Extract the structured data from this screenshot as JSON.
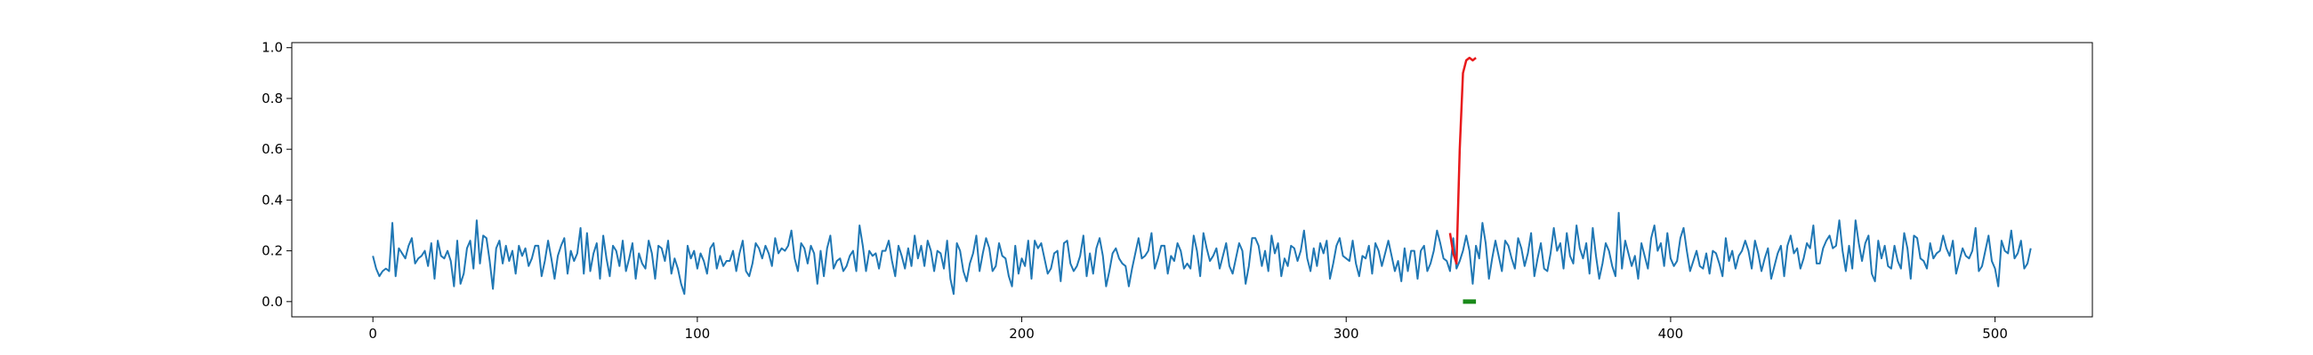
{
  "chart_data": {
    "type": "line",
    "title": "",
    "xlabel": "",
    "ylabel": "",
    "xlim": [
      -25,
      530
    ],
    "ylim": [
      -0.06,
      1.02
    ],
    "grid": false,
    "x_ticks": [
      0,
      100,
      200,
      300,
      400,
      500
    ],
    "y_ticks": [
      0.0,
      0.2,
      0.4,
      0.6,
      0.8,
      1.0
    ],
    "x_tick_labels": [
      "0",
      "100",
      "200",
      "300",
      "400",
      "500"
    ],
    "y_tick_labels": [
      "0.0",
      "0.2",
      "0.4",
      "0.6",
      "0.8",
      "1.0"
    ],
    "colors": {
      "signal": "#1f77b4",
      "anomaly": "#e8191b",
      "marker": "#1a8a1a"
    },
    "series": [
      {
        "values": [
          0.18,
          0.13,
          0.1,
          0.12,
          0.13,
          0.12,
          0.31,
          0.1,
          0.21,
          0.19,
          0.17,
          0.22,
          0.25,
          0.15,
          0.17,
          0.18,
          0.2,
          0.14,
          0.23,
          0.09,
          0.24,
          0.18,
          0.17,
          0.2,
          0.16,
          0.06,
          0.24,
          0.07,
          0.11,
          0.21,
          0.24,
          0.13,
          0.32,
          0.15,
          0.26,
          0.25,
          0.16,
          0.05,
          0.21,
          0.24,
          0.15,
          0.22,
          0.16,
          0.2,
          0.11,
          0.22,
          0.18,
          0.21,
          0.14,
          0.17,
          0.22,
          0.22,
          0.1,
          0.16,
          0.24,
          0.17,
          0.09,
          0.18,
          0.22,
          0.25,
          0.11,
          0.2,
          0.16,
          0.19,
          0.29,
          0.11,
          0.27,
          0.12,
          0.19,
          0.23,
          0.09,
          0.26,
          0.17,
          0.1,
          0.22,
          0.2,
          0.14,
          0.24,
          0.12,
          0.17,
          0.23,
          0.09,
          0.19,
          0.15,
          0.13,
          0.24,
          0.19,
          0.09,
          0.22,
          0.21,
          0.16,
          0.24,
          0.11,
          0.17,
          0.13,
          0.07,
          0.03,
          0.22,
          0.17,
          0.2,
          0.13,
          0.19,
          0.16,
          0.11,
          0.21,
          0.23,
          0.13,
          0.18,
          0.14,
          0.16,
          0.16,
          0.2,
          0.12,
          0.19,
          0.24,
          0.12,
          0.1,
          0.15,
          0.23,
          0.21,
          0.17,
          0.22,
          0.19,
          0.14,
          0.25,
          0.19,
          0.21,
          0.2,
          0.22,
          0.28,
          0.17,
          0.12,
          0.23,
          0.21,
          0.15,
          0.22,
          0.19,
          0.07,
          0.2,
          0.1,
          0.21,
          0.26,
          0.13,
          0.16,
          0.17,
          0.12,
          0.14,
          0.18,
          0.2,
          0.12,
          0.3,
          0.22,
          0.12,
          0.2,
          0.18,
          0.19,
          0.13,
          0.2,
          0.2,
          0.24,
          0.16,
          0.1,
          0.22,
          0.18,
          0.13,
          0.21,
          0.14,
          0.26,
          0.17,
          0.22,
          0.14,
          0.24,
          0.2,
          0.12,
          0.2,
          0.19,
          0.13,
          0.24,
          0.09,
          0.03,
          0.23,
          0.2,
          0.12,
          0.08,
          0.15,
          0.19,
          0.26,
          0.12,
          0.19,
          0.25,
          0.21,
          0.12,
          0.14,
          0.23,
          0.18,
          0.17,
          0.1,
          0.06,
          0.22,
          0.11,
          0.17,
          0.14,
          0.24,
          0.09,
          0.24,
          0.21,
          0.23,
          0.17,
          0.11,
          0.13,
          0.19,
          0.2,
          0.08,
          0.23,
          0.24,
          0.15,
          0.12,
          0.14,
          0.18,
          0.26,
          0.1,
          0.19,
          0.11,
          0.21,
          0.25,
          0.18,
          0.06,
          0.12,
          0.19,
          0.21,
          0.17,
          0.15,
          0.14,
          0.06,
          0.13,
          0.19,
          0.25,
          0.17,
          0.18,
          0.2,
          0.27,
          0.13,
          0.17,
          0.22,
          0.22,
          0.11,
          0.18,
          0.16,
          0.23,
          0.2,
          0.13,
          0.15,
          0.13,
          0.26,
          0.2,
          0.1,
          0.27,
          0.21,
          0.16,
          0.18,
          0.21,
          0.13,
          0.18,
          0.23,
          0.14,
          0.11,
          0.17,
          0.23,
          0.2,
          0.07,
          0.14,
          0.25,
          0.25,
          0.22,
          0.14,
          0.2,
          0.12,
          0.26,
          0.19,
          0.23,
          0.1,
          0.17,
          0.14,
          0.22,
          0.21,
          0.16,
          0.2,
          0.28,
          0.17,
          0.12,
          0.21,
          0.14,
          0.23,
          0.19,
          0.24,
          0.09,
          0.15,
          0.22,
          0.25,
          0.18,
          0.17,
          0.16,
          0.24,
          0.15,
          0.1,
          0.18,
          0.17,
          0.22,
          0.11,
          0.23,
          0.2,
          0.14,
          0.19,
          0.24,
          0.18,
          0.12,
          0.16,
          0.08,
          0.21,
          0.12,
          0.2,
          0.2,
          0.09,
          0.2,
          0.22,
          0.12,
          0.15,
          0.2,
          0.28,
          0.23,
          0.17,
          0.16,
          0.12,
          0.25,
          0.13,
          0.16,
          0.2,
          0.26,
          0.2,
          0.07,
          0.22,
          0.17,
          0.31,
          0.23,
          0.09,
          0.17,
          0.24,
          0.18,
          0.12,
          0.24,
          0.22,
          0.17,
          0.13,
          0.25,
          0.21,
          0.14,
          0.19,
          0.27,
          0.1,
          0.17,
          0.23,
          0.13,
          0.12,
          0.19,
          0.29,
          0.2,
          0.23,
          0.13,
          0.27,
          0.18,
          0.15,
          0.3,
          0.21,
          0.17,
          0.23,
          0.11,
          0.29,
          0.18,
          0.09,
          0.15,
          0.23,
          0.2,
          0.14,
          0.1,
          0.35,
          0.13,
          0.24,
          0.19,
          0.14,
          0.18,
          0.09,
          0.23,
          0.18,
          0.13,
          0.25,
          0.3,
          0.2,
          0.23,
          0.14,
          0.27,
          0.17,
          0.14,
          0.16,
          0.25,
          0.29,
          0.2,
          0.12,
          0.16,
          0.2,
          0.14,
          0.13,
          0.19,
          0.11,
          0.2,
          0.19,
          0.15,
          0.1,
          0.25,
          0.16,
          0.2,
          0.13,
          0.18,
          0.2,
          0.24,
          0.2,
          0.13,
          0.24,
          0.19,
          0.12,
          0.17,
          0.21,
          0.09,
          0.14,
          0.19,
          0.22,
          0.1,
          0.22,
          0.26,
          0.19,
          0.21,
          0.13,
          0.17,
          0.23,
          0.21,
          0.3,
          0.15,
          0.15,
          0.21,
          0.24,
          0.26,
          0.21,
          0.22,
          0.32,
          0.2,
          0.12,
          0.22,
          0.13,
          0.32,
          0.23,
          0.16,
          0.23,
          0.26,
          0.11,
          0.08,
          0.24,
          0.17,
          0.22,
          0.14,
          0.13,
          0.22,
          0.16,
          0.13,
          0.27,
          0.21,
          0.09,
          0.26,
          0.25,
          0.17,
          0.16,
          0.13,
          0.23,
          0.17,
          0.19,
          0.2,
          0.26,
          0.21,
          0.18,
          0.24,
          0.11,
          0.16,
          0.21,
          0.18,
          0.17,
          0.2,
          0.29,
          0.12,
          0.14,
          0.2,
          0.26,
          0.16,
          0.13,
          0.06,
          0.24,
          0.2,
          0.19,
          0.28,
          0.17,
          0.19,
          0.24,
          0.13,
          0.15,
          0.21
        ]
      }
    ],
    "anomaly_segment": {
      "x": [
        332,
        333,
        334,
        335,
        336,
        337,
        338,
        339,
        340
      ],
      "y": [
        0.27,
        0.19,
        0.15,
        0.6,
        0.9,
        0.95,
        0.96,
        0.95,
        0.96
      ]
    },
    "marker_segment": {
      "x": [
        336,
        340
      ],
      "y": [
        0.0,
        0.0
      ]
    }
  }
}
